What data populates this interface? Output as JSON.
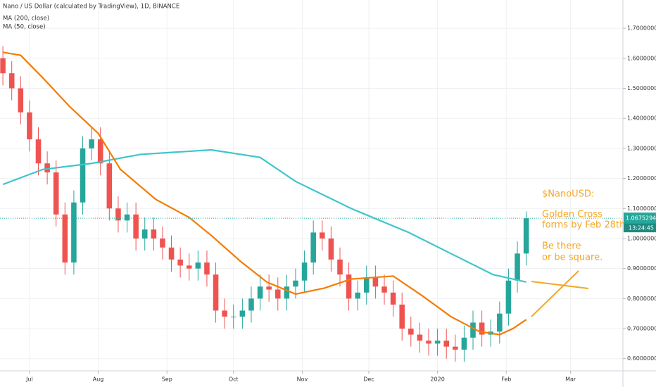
{
  "chart_data": {
    "type": "candlestick",
    "title": "Nano / US Dollar (calculated by TradingView), 1D, BINANCE",
    "x": [
      -12,
      -8,
      -4,
      0,
      4,
      8,
      12,
      16,
      20,
      24,
      28,
      32,
      36,
      40,
      44,
      48,
      52,
      56,
      60,
      64,
      68,
      72,
      76,
      80,
      84,
      88,
      92,
      96,
      100,
      104,
      108,
      112,
      116,
      120,
      124,
      128,
      132,
      136,
      140,
      144,
      148,
      152,
      156,
      160,
      164,
      168,
      172,
      176,
      180,
      184,
      188,
      192,
      196,
      200,
      204,
      208,
      212,
      216,
      220,
      224
    ],
    "open": [
      1.6,
      1.55,
      1.5,
      1.42,
      1.33,
      1.25,
      1.22,
      1.08,
      0.92,
      1.12,
      1.3,
      1.33,
      1.25,
      1.1,
      1.06,
      1.08,
      1.0,
      1.03,
      1.0,
      0.97,
      0.93,
      0.91,
      0.9,
      0.92,
      0.88,
      0.76,
      0.74,
      0.74,
      0.76,
      0.8,
      0.84,
      0.83,
      0.8,
      0.84,
      0.86,
      0.92,
      1.02,
      1.0,
      0.93,
      0.88,
      0.8,
      0.82,
      0.87,
      0.84,
      0.82,
      0.78,
      0.7,
      0.68,
      0.66,
      0.65,
      0.66,
      0.64,
      0.63,
      0.67,
      0.72,
      0.68,
      0.69,
      0.75,
      0.86,
      0.95
    ],
    "high": [
      1.64,
      1.59,
      1.54,
      1.46,
      1.37,
      1.29,
      1.26,
      1.12,
      1.16,
      1.34,
      1.37,
      1.37,
      1.29,
      1.14,
      1.12,
      1.12,
      1.07,
      1.07,
      1.04,
      1.01,
      0.97,
      0.95,
      0.96,
      0.96,
      0.92,
      0.8,
      0.78,
      0.8,
      0.84,
      0.88,
      0.88,
      0.87,
      0.88,
      0.9,
      0.96,
      1.06,
      1.06,
      1.04,
      0.97,
      0.92,
      0.86,
      0.91,
      0.91,
      0.88,
      0.86,
      0.82,
      0.74,
      0.72,
      0.7,
      0.7,
      0.7,
      0.68,
      0.71,
      0.76,
      0.76,
      0.73,
      0.79,
      0.9,
      0.99,
      1.09
    ],
    "low": [
      1.51,
      1.46,
      1.38,
      1.29,
      1.21,
      1.18,
      1.04,
      0.88,
      0.88,
      1.08,
      1.26,
      1.21,
      1.06,
      1.02,
      1.02,
      0.96,
      0.96,
      0.96,
      0.93,
      0.89,
      0.87,
      0.86,
      0.86,
      0.84,
      0.72,
      0.7,
      0.7,
      0.7,
      0.72,
      0.76,
      0.79,
      0.76,
      0.76,
      0.8,
      0.82,
      0.88,
      0.96,
      0.89,
      0.84,
      0.76,
      0.76,
      0.78,
      0.8,
      0.78,
      0.74,
      0.66,
      0.64,
      0.62,
      0.61,
      0.61,
      0.6,
      0.59,
      0.59,
      0.63,
      0.64,
      0.64,
      0.65,
      0.71,
      0.82,
      0.91
    ],
    "close": [
      1.55,
      1.5,
      1.42,
      1.33,
      1.25,
      1.22,
      1.08,
      0.92,
      1.12,
      1.3,
      1.33,
      1.25,
      1.1,
      1.06,
      1.08,
      1.0,
      1.03,
      1.0,
      0.97,
      0.93,
      0.91,
      0.9,
      0.92,
      0.88,
      0.76,
      0.74,
      0.74,
      0.76,
      0.8,
      0.84,
      0.83,
      0.8,
      0.84,
      0.86,
      0.92,
      1.02,
      1.0,
      0.93,
      0.88,
      0.8,
      0.82,
      0.87,
      0.84,
      0.82,
      0.78,
      0.7,
      0.68,
      0.66,
      0.65,
      0.66,
      0.64,
      0.63,
      0.67,
      0.72,
      0.68,
      0.69,
      0.75,
      0.86,
      0.95,
      1.0675
    ],
    "up_color": "#26a69a",
    "down_color": "#ef5350",
    "series": [
      {
        "name": "MA (200, close)",
        "color": "#3fc5cb",
        "x": [
          -12,
          6,
          28,
          50,
          82,
          104,
          120,
          145,
          171,
          190,
          209,
          224
        ],
        "values": [
          1.18,
          1.23,
          1.25,
          1.28,
          1.295,
          1.27,
          1.19,
          1.1,
          1.02,
          0.95,
          0.88,
          0.855
        ]
      },
      {
        "name": "MA (50, close)",
        "color": "#f57c00",
        "x": [
          -12,
          -4,
          6,
          18,
          31,
          41,
          57,
          72,
          82,
          95,
          107,
          120,
          133,
          145,
          164,
          177,
          190,
          203,
          212,
          218,
          224
        ],
        "values": [
          1.62,
          1.61,
          1.535,
          1.44,
          1.35,
          1.23,
          1.13,
          1.07,
          1.01,
          0.925,
          0.855,
          0.815,
          0.835,
          0.865,
          0.875,
          0.81,
          0.74,
          0.69,
          0.68,
          0.7,
          0.73
        ]
      }
    ],
    "xlim": [
      -13.3,
      267.6
    ],
    "xticks": [
      {
        "value": 0,
        "label": "Jul"
      },
      {
        "value": 31,
        "label": "Aug"
      },
      {
        "value": 62,
        "label": "Sep"
      },
      {
        "value": 92,
        "label": "Oct"
      },
      {
        "value": 123,
        "label": "Nov"
      },
      {
        "value": 153,
        "label": "Dec"
      },
      {
        "value": 184,
        "label": "2020"
      },
      {
        "value": 215,
        "label": "Feb"
      },
      {
        "value": 244,
        "label": "Mar"
      }
    ],
    "ylim": [
      0.5595,
      1.794
    ],
    "yticks": [
      {
        "value": 0.6,
        "label": "0.6000000"
      },
      {
        "value": 0.7,
        "label": "0.7000000"
      },
      {
        "value": 0.8,
        "label": "0.8000000"
      },
      {
        "value": 0.9,
        "label": "0.9000000"
      },
      {
        "value": 1.0,
        "label": "1.0000000"
      },
      {
        "value": 1.1,
        "label": "1.1000000"
      },
      {
        "value": 1.2,
        "label": "1.2000000"
      },
      {
        "value": 1.3,
        "label": "1.3000000"
      },
      {
        "value": 1.4,
        "label": "1.4000000"
      },
      {
        "value": 1.5,
        "label": "1.5000000"
      },
      {
        "value": 1.6,
        "label": "1.6000000"
      },
      {
        "value": 1.7,
        "label": "1.7000000"
      }
    ],
    "grid": true,
    "last_price": 1.0675294,
    "countdown": "13:24:45",
    "annotations": [
      "$NanoUSD:",
      "Golden Cross",
      "forms by Feb 28th.",
      "Be there",
      "or be square."
    ]
  }
}
